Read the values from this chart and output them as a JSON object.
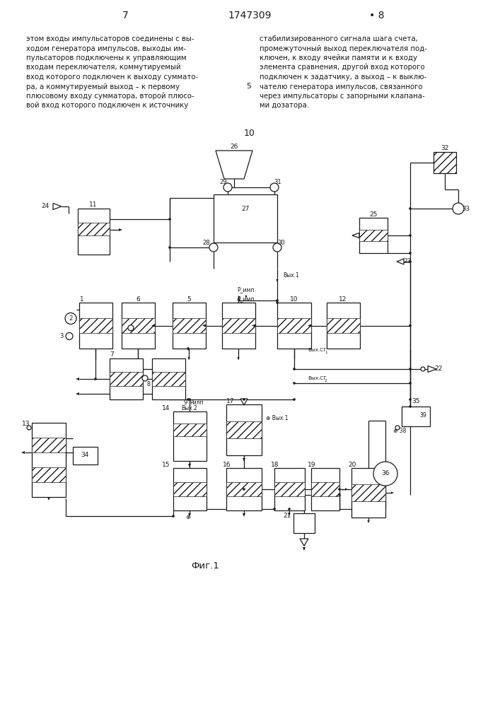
{
  "page_num_left": "7",
  "patent_num": "1747309",
  "page_num_right": "• 8",
  "center_num_5": "5",
  "center_num_10": "10",
  "fig_label": "Фиг.1",
  "text_left": [
    "этом входы импульсаторов соединены с вы-",
    "ходом генератора импульсов, выходы им-",
    "пульсаторов подключены к управляющим",
    "входам переключателя, коммутируемый",
    "вход которого подключен к выходу суммато-",
    "ра, а коммутируемый выход – к первому",
    "плюсовому входу сумматора, второй плюсо-",
    "вой вход которого подключен к источнику"
  ],
  "text_right": [
    "стабилизированного сигнала шага счета,",
    "промежуточный выход переключателя под-",
    "ключен, к входу ячейки памяти и к входу",
    "элемента сравнения, другой вход которого",
    "подключен к задатчику, а выход – к выклю-",
    "чателю генератора импульсов, связанного",
    "через импульсаторы с запорными клапана-",
    "ми дозатора."
  ],
  "bg": "#ffffff",
  "lc": "#1a1a1a"
}
